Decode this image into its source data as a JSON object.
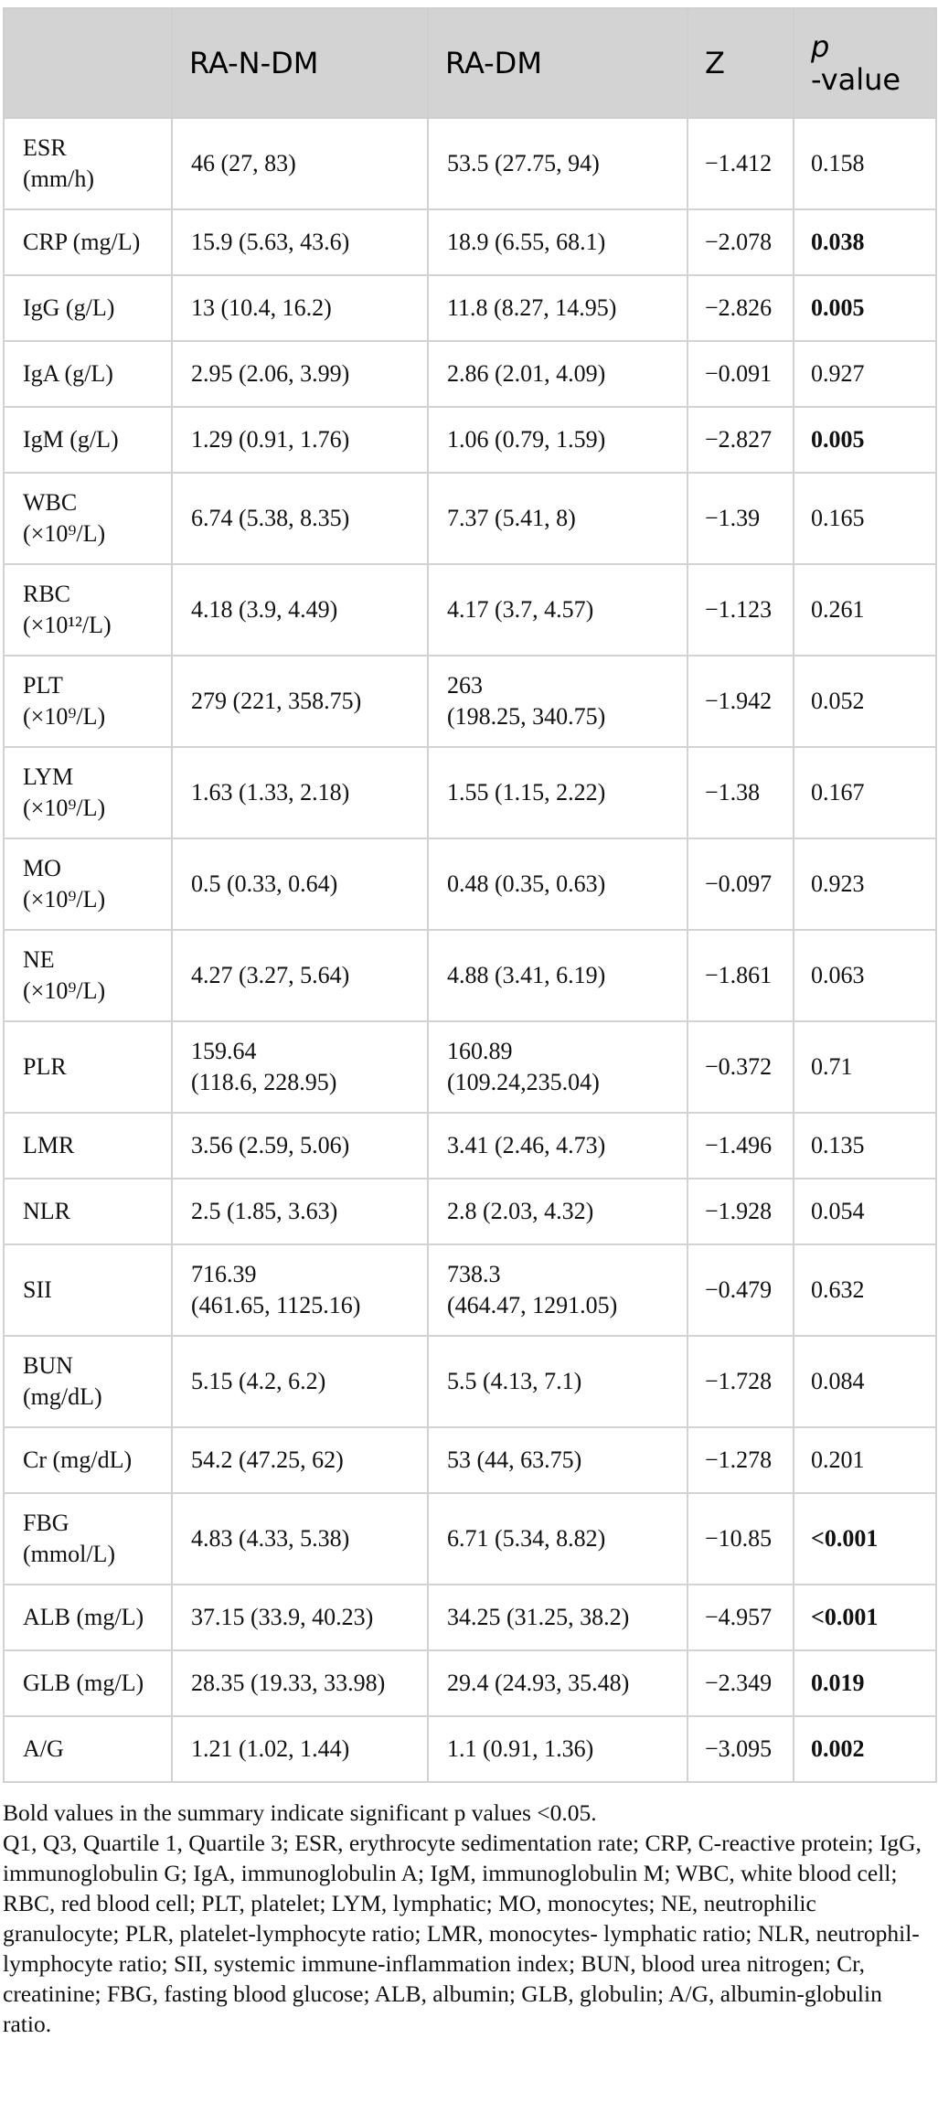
{
  "table": {
    "headers": [
      "",
      "RA-N-DM",
      "RA-DM",
      "Z",
      "p-value"
    ],
    "header_p": {
      "italic": "p",
      "rest": "-value"
    },
    "rows": [
      {
        "label": "ESR (mm/h)",
        "a": "46 (27, 83)",
        "b": "53.5 (27.75, 94)",
        "z": "−1.412",
        "p": "0.158",
        "bold": false
      },
      {
        "label": "CRP (mg/L)",
        "a": "15.9 (5.63, 43.6)",
        "b": "18.9 (6.55, 68.1)",
        "z": "−2.078",
        "p": "0.038",
        "bold": true
      },
      {
        "label": "IgG (g/L)",
        "a": "13 (10.4, 16.2)",
        "b": "11.8 (8.27, 14.95)",
        "z": "−2.826",
        "p": "0.005",
        "bold": true
      },
      {
        "label": "IgA (g/L)",
        "a": "2.95 (2.06, 3.99)",
        "b": "2.86 (2.01, 4.09)",
        "z": "−0.091",
        "p": "0.927",
        "bold": false
      },
      {
        "label": "IgM (g/L)",
        "a": "1.29 (0.91, 1.76)",
        "b": "1.06 (0.79, 1.59)",
        "z": "−2.827",
        "p": "0.005",
        "bold": true
      },
      {
        "label": "WBC (×10⁹/L)",
        "a": "6.74 (5.38, 8.35)",
        "b": "7.37 (5.41, 8)",
        "z": "−1.39",
        "p": "0.165",
        "bold": false
      },
      {
        "label": "RBC (×10¹²/L)",
        "a": "4.18 (3.9, 4.49)",
        "b": "4.17 (3.7, 4.57)",
        "z": "−1.123",
        "p": "0.261",
        "bold": false
      },
      {
        "label": "PLT (×10⁹/L)",
        "a": "279 (221, 358.75)",
        "b": "263 (198.25, 340.75)",
        "z": "−1.942",
        "p": "0.052",
        "bold": false
      },
      {
        "label": "LYM (×10⁹/L)",
        "a": "1.63 (1.33, 2.18)",
        "b": "1.55 (1.15, 2.22)",
        "z": "−1.38",
        "p": "0.167",
        "bold": false
      },
      {
        "label": "MO (×10⁹/L)",
        "a": "0.5 (0.33, 0.64)",
        "b": "0.48 (0.35, 0.63)",
        "z": "−0.097",
        "p": "0.923",
        "bold": false
      },
      {
        "label": "NE (×10⁹/L)",
        "a": "4.27 (3.27, 5.64)",
        "b": "4.88 (3.41, 6.19)",
        "z": "−1.861",
        "p": "0.063",
        "bold": false
      },
      {
        "label": "PLR",
        "a": "159.64 (118.6, 228.95)",
        "b": "160.89 (109.24,235.04)",
        "z": "−0.372",
        "p": "0.71",
        "bold": false
      },
      {
        "label": "LMR",
        "a": "3.56 (2.59, 5.06)",
        "b": "3.41 (2.46, 4.73)",
        "z": "−1.496",
        "p": "0.135",
        "bold": false
      },
      {
        "label": "NLR",
        "a": "2.5 (1.85, 3.63)",
        "b": "2.8 (2.03, 4.32)",
        "z": "−1.928",
        "p": "0.054",
        "bold": false
      },
      {
        "label": "SII",
        "a": "716.39 (461.65, 1125.16)",
        "b": "738.3 (464.47, 1291.05)",
        "z": "−0.479",
        "p": "0.632",
        "bold": false
      },
      {
        "label": "BUN (mg/dL)",
        "a": "5.15 (4.2, 6.2)",
        "b": "5.5 (4.13, 7.1)",
        "z": "−1.728",
        "p": "0.084",
        "bold": false
      },
      {
        "label": "Cr (mg/dL)",
        "a": "54.2 (47.25, 62)",
        "b": "53 (44, 63.75)",
        "z": "−1.278",
        "p": "0.201",
        "bold": false
      },
      {
        "label": "FBG (mmol/L)",
        "a": "4.83 (4.33, 5.38)",
        "b": "6.71 (5.34, 8.82)",
        "z": "−10.85",
        "p": "<0.001",
        "bold": true
      },
      {
        "label": "ALB (mg/L)",
        "a": "37.15 (33.9, 40.23)",
        "b": "34.25 (31.25, 38.2)",
        "z": "−4.957",
        "p": "<0.001",
        "bold": true
      },
      {
        "label": "GLB (mg/L)",
        "a": "28.35 (19.33, 33.98)",
        "b": "29.4 (24.93, 35.48)",
        "z": "−2.349",
        "p": "0.019",
        "bold": true
      },
      {
        "label": "A/G",
        "a": "1.21 (1.02, 1.44)",
        "b": "1.1 (0.91, 1.36)",
        "z": "−3.095",
        "p": "0.002",
        "bold": true
      }
    ]
  },
  "footnote": {
    "line1": "Bold values in the summary indicate significant p values <0.05.",
    "line2": "Q1, Q3, Quartile 1, Quartile 3; ESR, erythrocyte sedimentation rate; CRP, C-reactive protein; IgG, immunoglobulin G; IgA, immunoglobulin A; IgM, immunoglobulin M; WBC, white blood cell; RBC, red blood cell; PLT, platelet; LYM, lymphatic; MO, monocytes; NE, neutrophilic granulocyte; PLR, platelet-lymphocyte ratio; LMR, monocytes- lymphatic ratio; NLR, neutrophil-lymphocyte ratio; SII, systemic immune-inflammation index; BUN, blood urea nitrogen; Cr, creatinine; FBG, fasting blood glucose; ALB, albumin; GLB, globulin; A/G, albumin-globulin ratio."
  }
}
